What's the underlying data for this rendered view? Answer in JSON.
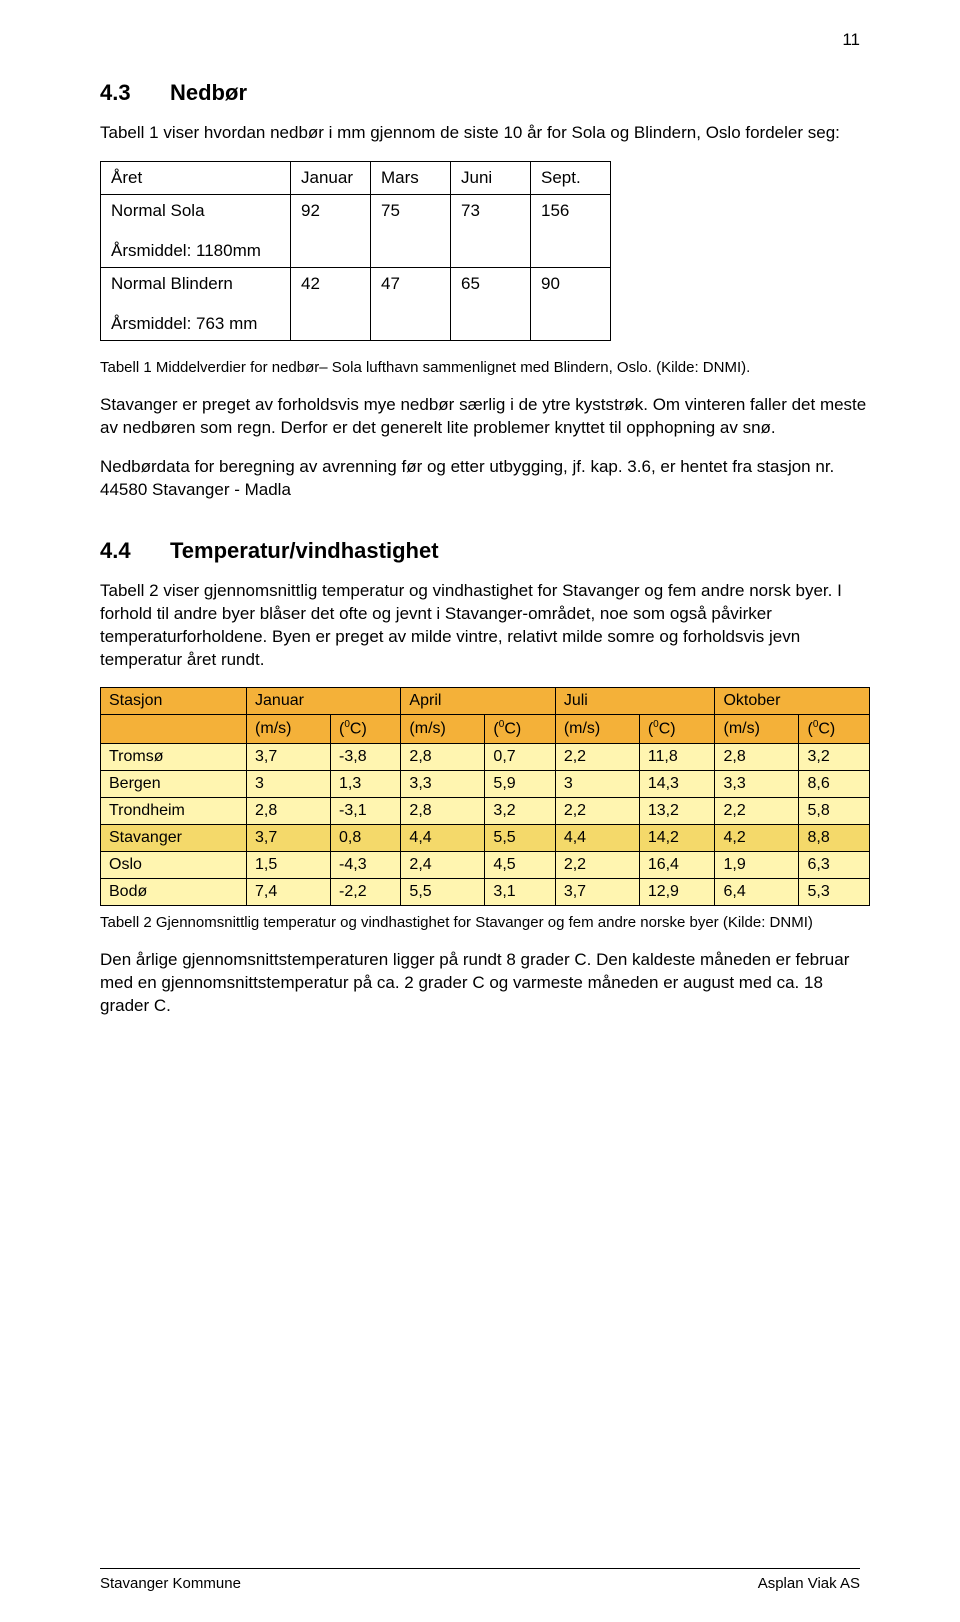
{
  "page_number": "11",
  "section43": {
    "number": "4.3",
    "title": "Nedbør",
    "intro": "Tabell 1 viser hvordan nedbør i mm gjennom de siste 10 år for Sola og Blindern, Oslo fordeler seg:",
    "table": {
      "columns": [
        "Året",
        "Januar",
        "Mars",
        "Juni",
        "Sept."
      ],
      "rows": [
        {
          "label1": "Normal Sola",
          "label2": "Årsmiddel: 1180mm",
          "vals": [
            "92",
            "75",
            "73",
            "156"
          ]
        },
        {
          "label1": "Normal Blindern",
          "label2": "Årsmiddel: 763 mm",
          "vals": [
            "42",
            "47",
            "65",
            "90"
          ]
        }
      ]
    },
    "caption": "Tabell 1 Middelverdier for nedbør– Sola lufthavn sammenlignet med Blindern, Oslo. (Kilde: DNMI).",
    "para2": "Stavanger er preget av forholdsvis mye nedbør særlig i de ytre kyststrøk. Om vinteren faller det meste av nedbøren som regn. Derfor er det generelt lite problemer knyttet til opphopning av snø.",
    "para3": "Nedbørdata for beregning av avrenning før og etter utbygging, jf. kap. 3.6, er hentet fra stasjon nr. 44580 Stavanger - Madla"
  },
  "section44": {
    "number": "4.4",
    "title": "Temperatur/vindhastighet",
    "intro": "Tabell 2 viser gjennomsnittlig temperatur og vindhastighet for Stavanger og fem andre norsk byer. I forhold til andre byer blåser det ofte og jevnt i Stavanger-området, noe som også påvirker temperaturforholdene. Byen er preget av milde vintre, relativt milde somre og forholdsvis jevn temperatur året rundt.",
    "table": {
      "col_station": "Stasjon",
      "months": [
        "Januar",
        "April",
        "Juli",
        "Oktober"
      ],
      "sub_ms": "(m/s)",
      "sub_c_pre": "(",
      "sub_c_zero": "0",
      "sub_c_post": "C)",
      "rows": [
        {
          "station": "Tromsø",
          "vals": [
            "3,7",
            "-3,8",
            "2,8",
            "0,7",
            "2,2",
            "11,8",
            "2,8",
            "3,2"
          ]
        },
        {
          "station": "Bergen",
          "vals": [
            "3",
            "1,3",
            "3,3",
            "5,9",
            "3",
            "14,3",
            "3,3",
            "8,6"
          ]
        },
        {
          "station": "Trondheim",
          "vals": [
            "2,8",
            "-3,1",
            "2,8",
            "3,2",
            "2,2",
            "13,2",
            "2,2",
            "5,8"
          ]
        },
        {
          "station": "Stavanger",
          "vals": [
            "3,7",
            "0,8",
            "4,4",
            "5,5",
            "4,4",
            "14,2",
            "4,2",
            "8,8"
          ],
          "highlight": true
        },
        {
          "station": "Oslo",
          "vals": [
            "1,5",
            "-4,3",
            "2,4",
            "4,5",
            "2,2",
            "16,4",
            "1,9",
            "6,3"
          ]
        },
        {
          "station": "Bodø",
          "vals": [
            "7,4",
            "-2,2",
            "5,5",
            "3,1",
            "3,7",
            "12,9",
            "6,4",
            "5,3"
          ]
        }
      ],
      "colors": {
        "header_bg": "#f4b139",
        "cell_bg": "#fff5b0",
        "highlight_row_bg": "#f4d96a",
        "border": "#000000"
      }
    },
    "caption": "Tabell 2 Gjennomsnittlig temperatur og vindhastighet for Stavanger og fem andre norske byer (Kilde: DNMI)",
    "para2": "Den årlige gjennomsnittstemperaturen ligger på rundt 8 grader C. Den kaldeste måneden er februar med en gjennomsnittstemperatur på ca. 2 grader C og varmeste måneden er august med ca. 18 grader C."
  },
  "footer": {
    "left": "Stavanger Kommune",
    "right": "Asplan Viak AS"
  }
}
